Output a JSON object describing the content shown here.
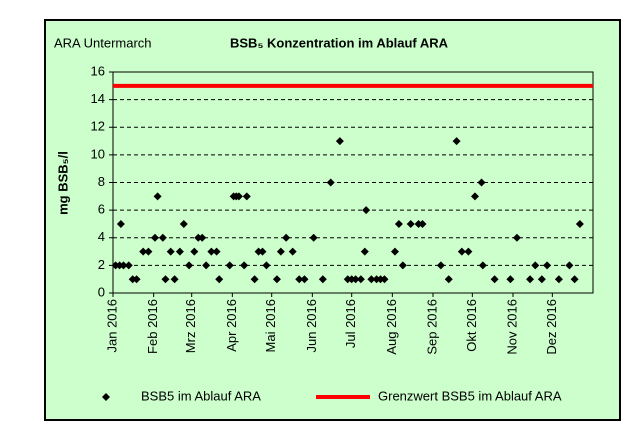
{
  "chart_data": {
    "type": "scatter",
    "title": "BSB₅ Konzentration im Ablauf ARA",
    "annotation": "ARA Untermarch",
    "y_label": "mg BSB₅/l",
    "xlim": [
      0,
      366
    ],
    "xticks": [
      {
        "value": 0,
        "label": "Jan 2016"
      },
      {
        "value": 31,
        "label": "Feb 2016"
      },
      {
        "value": 60,
        "label": "Mrz 2016"
      },
      {
        "value": 91,
        "label": "Apr 2016"
      },
      {
        "value": 121,
        "label": "Mai 2016"
      },
      {
        "value": 152,
        "label": "Jun 2016"
      },
      {
        "value": 182,
        "label": "Jul 2016"
      },
      {
        "value": 213,
        "label": "Aug 2016"
      },
      {
        "value": 244,
        "label": "Sep 2016"
      },
      {
        "value": 274,
        "label": "Okt 2016"
      },
      {
        "value": 305,
        "label": "Nov 2016"
      },
      {
        "value": 335,
        "label": "Dez 2016"
      }
    ],
    "ylim": [
      0,
      16
    ],
    "yticks": [
      0,
      2,
      4,
      6,
      8,
      10,
      12,
      14,
      16
    ],
    "grid": true,
    "series": [
      {
        "name": "BSB5 im Ablauf ARA",
        "color": "#000000",
        "marker": "diamond",
        "x": [
          2,
          5,
          6,
          8,
          12,
          15,
          18,
          23,
          27,
          32,
          34,
          38,
          40,
          44,
          47,
          51,
          54,
          58,
          62,
          65,
          68,
          71,
          75,
          79,
          81,
          89,
          92,
          94,
          96,
          100,
          102,
          108,
          111,
          114,
          117,
          125,
          128,
          132,
          137,
          142,
          146,
          153,
          160,
          166,
          173,
          179,
          182,
          185,
          189,
          192,
          193,
          197,
          201,
          204,
          207,
          215,
          218,
          221,
          227,
          233,
          236,
          250,
          256,
          262,
          266,
          271,
          276,
          281,
          282,
          291,
          303,
          308,
          318,
          322,
          327,
          331,
          340,
          348,
          352,
          356
        ],
        "values": [
          2,
          2,
          5,
          2,
          2,
          1,
          1,
          3,
          3,
          4,
          7,
          4,
          1,
          3,
          1,
          3,
          5,
          2,
          3,
          4,
          4,
          2,
          3,
          3,
          1,
          2,
          7,
          7,
          7,
          2,
          7,
          1,
          3,
          3,
          2,
          1,
          3,
          4,
          3,
          1,
          1,
          4,
          1,
          8,
          11,
          1,
          1,
          1,
          1,
          3,
          6,
          1,
          1,
          1,
          1,
          3,
          5,
          2,
          5,
          5,
          5,
          2,
          1,
          11,
          3,
          3,
          7,
          8,
          2,
          1,
          1,
          4,
          1,
          2,
          1,
          2,
          1,
          2,
          1,
          5
        ]
      },
      {
        "name": "Grenzwert BSB5 im Ablauf ARA",
        "color": "#ff0000",
        "marker": "line",
        "x": [
          0,
          366
        ],
        "values": [
          15,
          15
        ]
      }
    ]
  }
}
